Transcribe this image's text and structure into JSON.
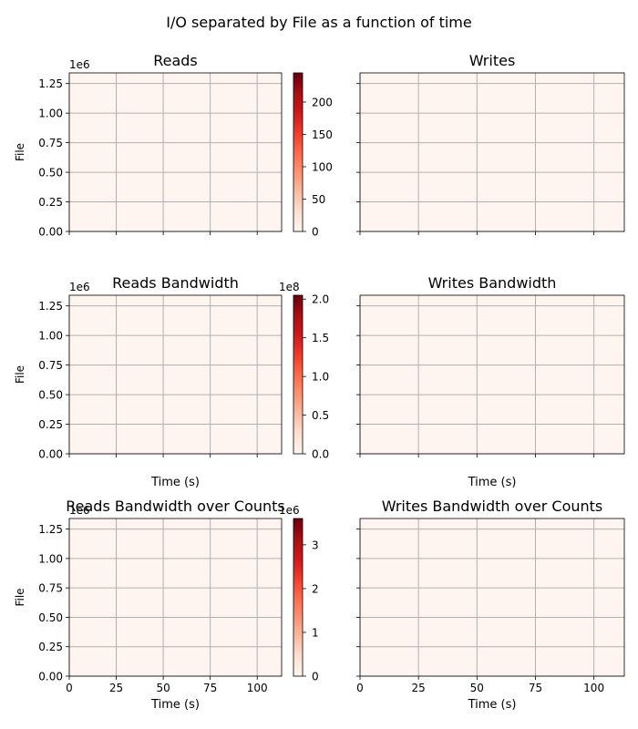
{
  "suptitle": "I/O separated by File as a function of time",
  "colors": {
    "plot_background": "#fff5f0",
    "grid": "#b0b0b0",
    "axis": "#000000",
    "colormap": [
      "#fff5f0",
      "#fee0d2",
      "#fcbba1",
      "#fc9272",
      "#fb6a4a",
      "#ef3b2c",
      "#cb181d",
      "#a50f15",
      "#67000d"
    ]
  },
  "chart_data": [
    {
      "type": "heatmap",
      "title": "Reads",
      "xlabel": "",
      "ylabel": "File",
      "xlim": [
        0,
        113
      ],
      "ylim": [
        0,
        1340000
      ],
      "xticks": [
        0,
        25,
        50,
        75,
        100
      ],
      "xtick_labels": [
        "0",
        "25",
        "50",
        "75",
        "100"
      ],
      "show_xtick_labels": false,
      "yticks": [
        0,
        250000,
        500000,
        750000,
        1000000,
        1250000
      ],
      "ytick_labels": [
        "0.00",
        "0.25",
        "0.50",
        "0.75",
        "1.00",
        "1.25"
      ],
      "show_ytick_labels": true,
      "y_offset_label": "1e6",
      "grid": true,
      "colorbar": {
        "range": [
          0,
          245
        ],
        "ticks": [
          0,
          50,
          100,
          150,
          200
        ],
        "tick_labels": [
          "0",
          "50",
          "100",
          "150",
          "200"
        ],
        "offset_label": ""
      }
    },
    {
      "type": "heatmap",
      "title": "Writes",
      "xlabel": "",
      "ylabel": "",
      "xlim": [
        0,
        113
      ],
      "ylim": [
        0,
        1340000
      ],
      "xticks": [
        0,
        25,
        50,
        75,
        100
      ],
      "xtick_labels": [
        "0",
        "25",
        "50",
        "75",
        "100"
      ],
      "show_xtick_labels": false,
      "yticks": [
        0,
        250000,
        500000,
        750000,
        1000000,
        1250000
      ],
      "ytick_labels": [
        "0.00",
        "0.25",
        "0.50",
        "0.75",
        "1.00",
        "1.25"
      ],
      "show_ytick_labels": false,
      "y_offset_label": "",
      "grid": true,
      "colorbar": null
    },
    {
      "type": "heatmap",
      "title": "Reads Bandwidth",
      "xlabel": "Time (s)",
      "ylabel": "File",
      "xlim": [
        0,
        113
      ],
      "ylim": [
        0,
        1340000
      ],
      "xticks": [
        0,
        25,
        50,
        75,
        100
      ],
      "xtick_labels": [
        "0",
        "25",
        "50",
        "75",
        "100"
      ],
      "show_xtick_labels": false,
      "yticks": [
        0,
        250000,
        500000,
        750000,
        1000000,
        1250000
      ],
      "ytick_labels": [
        "0.00",
        "0.25",
        "0.50",
        "0.75",
        "1.00",
        "1.25"
      ],
      "show_ytick_labels": true,
      "y_offset_label": "1e6",
      "grid": true,
      "colorbar": {
        "range": [
          0,
          2.05
        ],
        "ticks": [
          0,
          0.5,
          1.0,
          1.5,
          2.0
        ],
        "tick_labels": [
          "0.0",
          "0.5",
          "1.0",
          "1.5",
          "2.0"
        ],
        "offset_label": "1e8"
      }
    },
    {
      "type": "heatmap",
      "title": "Writes Bandwidth",
      "xlabel": "Time (s)",
      "ylabel": "",
      "xlim": [
        0,
        113
      ],
      "ylim": [
        0,
        1340000
      ],
      "xticks": [
        0,
        25,
        50,
        75,
        100
      ],
      "xtick_labels": [
        "0",
        "25",
        "50",
        "75",
        "100"
      ],
      "show_xtick_labels": false,
      "yticks": [
        0,
        250000,
        500000,
        750000,
        1000000,
        1250000
      ],
      "ytick_labels": [
        "0.00",
        "0.25",
        "0.50",
        "0.75",
        "1.00",
        "1.25"
      ],
      "show_ytick_labels": false,
      "y_offset_label": "",
      "grid": true,
      "colorbar": null
    },
    {
      "type": "heatmap",
      "title": "Reads Bandwidth over Counts",
      "xlabel": "Time (s)",
      "ylabel": "File",
      "xlim": [
        0,
        113
      ],
      "ylim": [
        0,
        1340000
      ],
      "xticks": [
        0,
        25,
        50,
        75,
        100
      ],
      "xtick_labels": [
        "0",
        "25",
        "50",
        "75",
        "100"
      ],
      "show_xtick_labels": true,
      "yticks": [
        0,
        250000,
        500000,
        750000,
        1000000,
        1250000
      ],
      "ytick_labels": [
        "0.00",
        "0.25",
        "0.50",
        "0.75",
        "1.00",
        "1.25"
      ],
      "show_ytick_labels": true,
      "y_offset_label": "1e6",
      "grid": true,
      "colorbar": {
        "range": [
          0,
          3.6
        ],
        "ticks": [
          0,
          1,
          2,
          3
        ],
        "tick_labels": [
          "0",
          "1",
          "2",
          "3"
        ],
        "offset_label": "1e6"
      }
    },
    {
      "type": "heatmap",
      "title": "Writes Bandwidth over Counts",
      "xlabel": "Time (s)",
      "ylabel": "",
      "xlim": [
        0,
        113
      ],
      "ylim": [
        0,
        1340000
      ],
      "xticks": [
        0,
        25,
        50,
        75,
        100
      ],
      "xtick_labels": [
        "0",
        "25",
        "50",
        "75",
        "100"
      ],
      "show_xtick_labels": true,
      "yticks": [
        0,
        250000,
        500000,
        750000,
        1000000,
        1250000
      ],
      "ytick_labels": [
        "0.00",
        "0.25",
        "0.50",
        "0.75",
        "1.00",
        "1.25"
      ],
      "show_ytick_labels": false,
      "y_offset_label": "",
      "grid": true,
      "colorbar": null
    }
  ]
}
